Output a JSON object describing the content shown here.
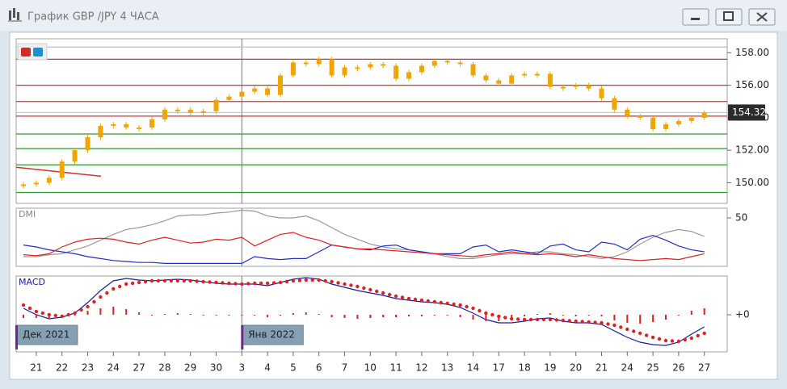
{
  "window": {
    "title": "График GBP /JPY  4 ЧАСА"
  },
  "x_axis": {
    "categories": [
      null,
      "21",
      null,
      "22",
      null,
      "23",
      null,
      "24",
      null,
      "27",
      null,
      "28",
      null,
      "29",
      null,
      "30",
      null,
      "3",
      null,
      "4",
      null,
      "5",
      null,
      "6",
      null,
      "7",
      null,
      "10",
      null,
      "11",
      null,
      "12",
      null,
      "13",
      null,
      "14",
      null,
      "17",
      null,
      "18",
      null,
      "19",
      null,
      "20",
      null,
      "21",
      null,
      "24",
      null,
      "25",
      null,
      "26",
      null,
      "27"
    ],
    "periods": [
      "Дек 2021",
      "Янв 2022"
    ]
  },
  "chart_data": [
    {
      "type": "candlestick",
      "color": "#f0a500",
      "values": [
        149.9,
        150.0,
        150.3,
        151.3,
        152.0,
        152.8,
        153.5,
        153.6,
        153.4,
        153.4,
        153.9,
        154.5,
        154.5,
        154.3,
        154.4,
        155.1,
        155.3,
        155.6,
        155.8,
        155.4,
        156.6,
        157.4,
        157.3,
        157.6,
        156.6,
        157.1,
        157.1,
        157.3,
        157.2,
        156.4,
        156.8,
        157.2,
        157.5,
        157.4,
        157.3,
        156.6,
        156.3,
        156.1,
        156.6,
        156.7,
        156.7,
        155.9,
        155.9,
        156.0,
        155.8,
        155.2,
        154.5,
        154.1,
        154.0,
        153.3,
        153.6,
        153.8,
        154.0,
        154.3
      ],
      "ylim": [
        148.73,
        158.86
      ],
      "yticks": [
        {
          "value": 150,
          "label": "150.00"
        },
        {
          "value": 152,
          "label": "152.00"
        },
        {
          "value": 154,
          "label": "154.00"
        },
        {
          "value": 156,
          "label": "156.00"
        },
        {
          "value": 158,
          "label": "158.00"
        }
      ],
      "levels": [
        {
          "value": 158.35,
          "color": "#bbbbbb"
        },
        {
          "value": 157.6,
          "color": "#d03030"
        },
        {
          "value": 156.0,
          "color": "#d03030"
        },
        {
          "value": 155.0,
          "color": "#d03030"
        },
        {
          "value": 154.1,
          "color": "#d03030"
        },
        {
          "value": 153.0,
          "color": "#2a9a2a"
        },
        {
          "value": 152.1,
          "color": "#2a9a2a"
        },
        {
          "value": 151.1,
          "color": "#2a9a2a"
        },
        {
          "value": 149.4,
          "color": "#2a9a2a"
        }
      ],
      "trend_line": {
        "values": [
          150.95,
          150.4
        ],
        "color": "#d03030"
      },
      "last_price": 154.32
    },
    {
      "type": "line",
      "title": "DMI",
      "ylim": [
        0,
        60
      ],
      "yticks": [
        50
      ],
      "series": [
        {
          "color": "#999999",
          "values": [
            10,
            10,
            12,
            13,
            17,
            21,
            27,
            33,
            38,
            40,
            43,
            47,
            52,
            53,
            53,
            55,
            56,
            58,
            57,
            52,
            50,
            50,
            52,
            47,
            40,
            33,
            28,
            23,
            20,
            18,
            17,
            15,
            13,
            10,
            8,
            8,
            10,
            12,
            13,
            13,
            15,
            15,
            13,
            12,
            10,
            8,
            10,
            15,
            23,
            30,
            35,
            38,
            36,
            31
          ]
        },
        {
          "color": "#2030c0",
          "values": [
            22,
            20,
            17,
            15,
            13,
            10,
            8,
            6,
            5,
            4,
            4,
            3,
            3,
            3,
            3,
            3,
            3,
            3,
            10,
            8,
            7,
            8,
            8,
            15,
            22,
            20,
            18,
            17,
            21,
            22,
            17,
            15,
            13,
            13,
            13,
            20,
            22,
            15,
            17,
            15,
            13,
            21,
            23,
            17,
            15,
            25,
            23,
            17,
            28,
            32,
            27,
            21,
            17,
            15
          ]
        },
        {
          "color": "#e02020",
          "values": [
            12,
            11,
            13,
            20,
            25,
            28,
            29,
            28,
            25,
            23,
            27,
            30,
            27,
            24,
            25,
            28,
            27,
            30,
            21,
            27,
            33,
            35,
            30,
            27,
            22,
            20,
            18,
            18,
            17,
            16,
            15,
            14,
            13,
            12,
            11,
            10,
            12,
            13,
            15,
            13,
            12,
            13,
            12,
            10,
            12,
            10,
            8,
            7,
            6,
            7,
            8,
            7,
            10,
            13
          ]
        }
      ]
    },
    {
      "type": "macd",
      "title": "MACD",
      "ylim": [
        -2.3,
        2.4
      ],
      "yticks": [
        {
          "value": 0,
          "label": "+0"
        }
      ],
      "series": [
        {
          "kind": "line",
          "color": "#1a1aa0",
          "values": [
            0.4,
            0,
            -0.25,
            -0.15,
            0.1,
            0.75,
            1.5,
            2.1,
            2.25,
            2.15,
            2.1,
            2.15,
            2.2,
            2.15,
            2.05,
            1.95,
            1.9,
            1.9,
            1.9,
            1.8,
            2.0,
            2.2,
            2.3,
            2.2,
            1.9,
            1.7,
            1.5,
            1.35,
            1.2,
            1.0,
            0.9,
            0.8,
            0.75,
            0.65,
            0.45,
            0.1,
            -0.3,
            -0.5,
            -0.5,
            -0.4,
            -0.25,
            -0.2,
            -0.4,
            -0.5,
            -0.5,
            -0.6,
            -1.0,
            -1.4,
            -1.7,
            -1.85,
            -1.9,
            -1.7,
            -1.2,
            -0.75
          ]
        },
        {
          "kind": "dots",
          "color": "#e02020",
          "values": [
            0.6,
            0.2,
            0,
            -0.1,
            0.1,
            0.5,
            1.1,
            1.6,
            1.9,
            2.0,
            2.1,
            2.1,
            2.1,
            2.1,
            2.05,
            2.0,
            1.95,
            1.9,
            1.95,
            1.95,
            2.0,
            2.1,
            2.15,
            2.15,
            2.05,
            1.9,
            1.75,
            1.55,
            1.35,
            1.15,
            1.0,
            0.9,
            0.8,
            0.7,
            0.6,
            0.4,
            0.1,
            -0.1,
            -0.25,
            -0.3,
            -0.3,
            -0.3,
            -0.35,
            -0.4,
            -0.45,
            -0.5,
            -0.65,
            -0.9,
            -1.15,
            -1.4,
            -1.6,
            -1.65,
            -1.45,
            -1.15
          ]
        },
        {
          "kind": "histogram",
          "color": "#e02020",
          "values": [
            -0.2,
            -0.2,
            -0.25,
            -0.05,
            0,
            0.25,
            0.4,
            0.5,
            0.35,
            0.15,
            0,
            0.05,
            0.1,
            0.05,
            0,
            -0.05,
            -0.05,
            0,
            -0.05,
            -0.15,
            0,
            0.1,
            0.15,
            0.05,
            -0.15,
            -0.2,
            -0.25,
            -0.2,
            -0.15,
            -0.15,
            -0.1,
            -0.1,
            -0.05,
            -0.05,
            -0.15,
            -0.3,
            -0.4,
            -0.4,
            -0.25,
            -0.1,
            0.05,
            0.1,
            -0.05,
            -0.1,
            -0.05,
            -0.1,
            -0.35,
            -0.5,
            -0.55,
            -0.45,
            -0.3,
            -0.05,
            0.25,
            0.4
          ]
        }
      ]
    }
  ]
}
